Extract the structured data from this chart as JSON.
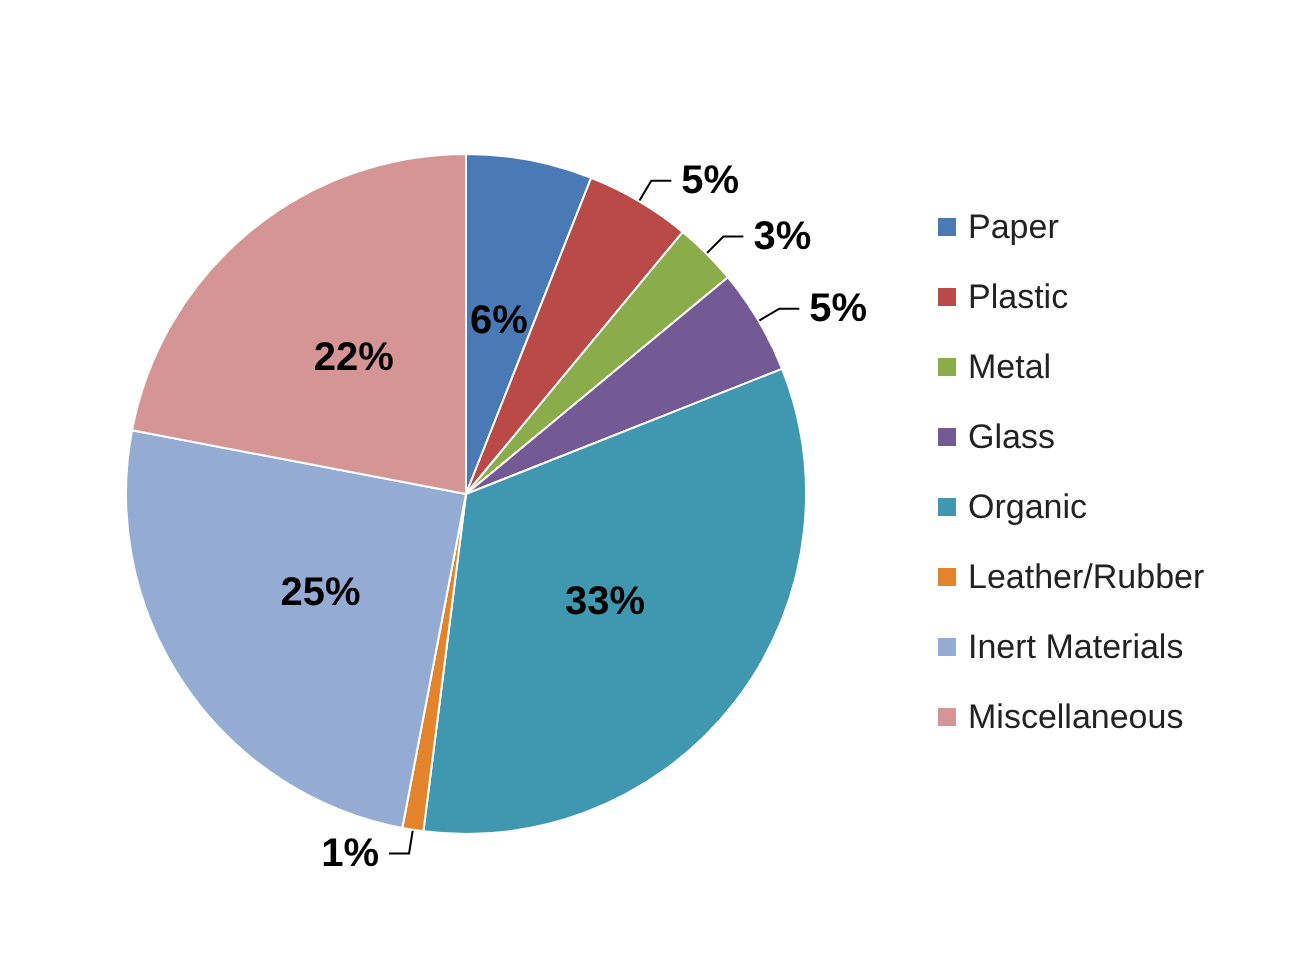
{
  "chart_data": {
    "type": "pie",
    "categories": [
      "Paper",
      "Plastic",
      "Metal",
      "Glass",
      "Organic",
      "Leather/Rubber",
      "Inert Materials",
      "Miscellaneous"
    ],
    "values": [
      6,
      5,
      3,
      5,
      33,
      1,
      25,
      22
    ],
    "value_labels": [
      "6%",
      "5%",
      "3%",
      "5%",
      "33%",
      "1%",
      "25%",
      "22%"
    ],
    "colors": [
      "#4a7ab5",
      "#b94a48",
      "#8aac4a",
      "#735a94",
      "#3f97b0",
      "#e3842c",
      "#94acd4",
      "#d49594"
    ],
    "legend": "right"
  }
}
